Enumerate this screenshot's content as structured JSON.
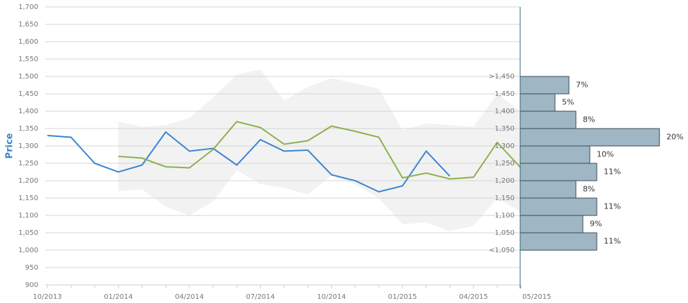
{
  "chart_data": [
    {
      "type": "line",
      "ylabel": "Price",
      "categories": [
        "10/2013",
        null,
        null,
        "01/2014",
        null,
        null,
        "04/2014",
        null,
        null,
        "07/2014",
        null,
        null,
        "10/2014",
        null,
        null,
        "01/2015",
        null,
        null,
        "04/2015",
        null,
        "05/2015"
      ],
      "ylim": [
        900,
        1700
      ],
      "yticks": [
        900,
        950,
        {
          "value": 1000,
          "label": "1,000"
        },
        {
          "value": 1050,
          "label": "1,050"
        },
        {
          "value": 1100,
          "label": "1,100"
        },
        {
          "value": 1150,
          "label": "1,150"
        },
        {
          "value": 1200,
          "label": "1,200"
        },
        {
          "value": 1250,
          "label": "1,250"
        },
        {
          "value": 1300,
          "label": "1,300"
        },
        {
          "value": 1350,
          "label": "1,350"
        },
        {
          "value": 1400,
          "label": "1,400"
        },
        {
          "value": 1450,
          "label": "1,450"
        },
        {
          "value": 1500,
          "label": "1,500"
        },
        {
          "value": 1550,
          "label": "1,550"
        },
        {
          "value": 1600,
          "label": "1,600"
        },
        {
          "value": 1650,
          "label": "1,650"
        },
        {
          "value": 1700,
          "label": "1,700"
        }
      ],
      "grid": true,
      "band": {
        "color": "#f2f2f2",
        "upper": [
          null,
          null,
          null,
          1370,
          1355,
          1360,
          1380,
          1440,
          1505,
          1520,
          1430,
          1470,
          1495,
          1480,
          1465,
          1345,
          1365,
          1360,
          1355,
          1450,
          1400
        ],
        "lower": [
          null,
          null,
          null,
          1170,
          1175,
          1125,
          1100,
          1140,
          1230,
          1190,
          1180,
          1160,
          1215,
          1190,
          1150,
          1075,
          1080,
          1055,
          1070,
          1150,
          1110
        ]
      },
      "series": [
        {
          "color": "#3b84d0",
          "values": [
            1330,
            1325,
            1250,
            1225,
            1245,
            1340,
            1285,
            1293,
            1245,
            1318,
            1285,
            1288,
            1217,
            1200,
            1168,
            1185,
            1285,
            1213,
            null,
            null,
            null
          ]
        },
        {
          "color": "#8cb04a",
          "values": [
            null,
            null,
            null,
            1270,
            1265,
            1240,
            1237,
            1290,
            1370,
            1353,
            1305,
            1315,
            1357,
            1342,
            1325,
            1208,
            1222,
            1205,
            1210,
            1310,
            1237
          ]
        }
      ]
    },
    {
      "type": "histogram",
      "orientation": "horizontal",
      "color": "#9fb6c4",
      "bins": [
        1000,
        1050,
        1100,
        1150,
        1200,
        1250,
        1300,
        1350,
        1400,
        1450,
        1500
      ],
      "bin_labels": [
        "<1,050",
        "1,050",
        "1,100",
        "1,150",
        "1,200",
        "1,250",
        "1,300",
        "1,350",
        "1,400",
        "1,450",
        ">1,450"
      ],
      "values": [
        11,
        9,
        11,
        8,
        11,
        10,
        20,
        8,
        5,
        7
      ],
      "value_labels": [
        "11%",
        "9%",
        "11%",
        "8%",
        "11%",
        "10%",
        "20%",
        "8%",
        "5%",
        "7%"
      ]
    }
  ]
}
